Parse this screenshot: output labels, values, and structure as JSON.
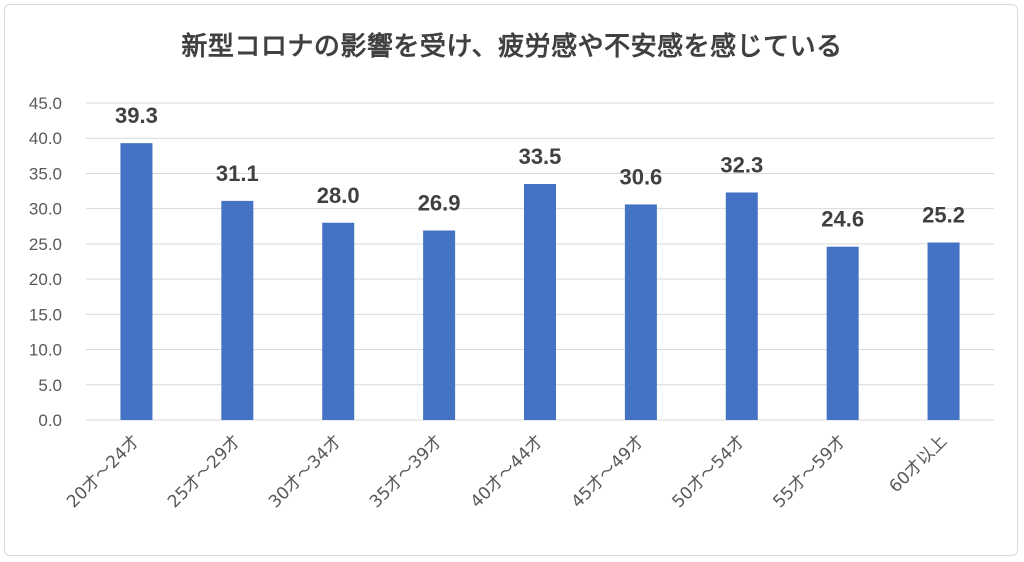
{
  "chart_data": {
    "type": "bar",
    "title": "新型コロナの影響を受け、疲労感や不安感を感じている",
    "categories": [
      "20才～24才",
      "25才～29才",
      "30才～34才",
      "35才～39才",
      "40才～44才",
      "45才～49才",
      "50才～54才",
      "55才～59才",
      "60才以上"
    ],
    "series": [
      {
        "values": [
          39.3,
          31.1,
          28.0,
          26.9,
          33.5,
          30.6,
          32.3,
          24.6,
          25.2
        ]
      }
    ],
    "data_labels": [
      "39.3",
      "31.1",
      "28.0",
      "26.9",
      "33.5",
      "30.6",
      "32.3",
      "24.6",
      "25.2"
    ],
    "ylim": [
      0,
      45
    ],
    "yticks": [
      "0.0",
      "5.0",
      "10.0",
      "15.0",
      "20.0",
      "25.0",
      "30.0",
      "35.0",
      "40.0",
      "45.0"
    ],
    "xlabel": "",
    "ylabel": "",
    "grid": true,
    "legend": "none",
    "colors": {
      "bar": "#4472C4",
      "grid": "#d9d9d9",
      "axis_text": "#595959",
      "label_text": "#404040"
    }
  }
}
